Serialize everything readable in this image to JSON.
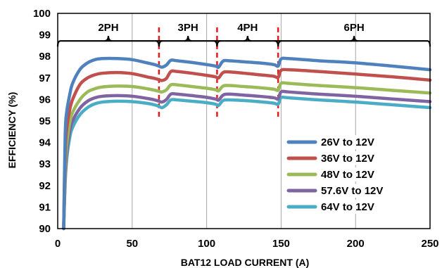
{
  "chart_data": {
    "type": "line",
    "xlabel": "BAT12 LOAD CURRENT (A)",
    "ylabel": "EFFICIENCY (%)",
    "xlim": [
      0,
      250
    ],
    "ylim": [
      90,
      100
    ],
    "x_ticks": [
      0,
      50,
      100,
      150,
      200,
      250
    ],
    "y_ticks": [
      90,
      91,
      92,
      93,
      94,
      95,
      96,
      97,
      98,
      99,
      100
    ],
    "grid": "vertical",
    "legend": "bottom-right",
    "phase_boundaries": [
      68,
      107,
      148
    ],
    "phase_labels": [
      {
        "label": "2PH",
        "x": 34
      },
      {
        "label": "3PH",
        "x": 87.5
      },
      {
        "label": "4PH",
        "x": 127.5
      },
      {
        "label": "6PH",
        "x": 199
      }
    ],
    "phase_bracket_level": 98.72,
    "series": [
      {
        "name": "26V to 12V",
        "color": "#4F81BD",
        "points": [
          [
            4,
            90.0
          ],
          [
            5,
            94.3
          ],
          [
            6,
            95.4
          ],
          [
            8,
            96.2
          ],
          [
            10,
            96.75
          ],
          [
            15,
            97.4
          ],
          [
            20,
            97.7
          ],
          [
            25,
            97.85
          ],
          [
            30,
            97.9
          ],
          [
            40,
            97.9
          ],
          [
            50,
            97.85
          ],
          [
            60,
            97.7
          ],
          [
            65,
            97.62
          ],
          [
            68,
            97.55
          ],
          [
            70,
            97.5
          ],
          [
            73,
            97.6
          ],
          [
            76,
            97.82
          ],
          [
            80,
            97.8
          ],
          [
            90,
            97.72
          ],
          [
            100,
            97.62
          ],
          [
            106,
            97.55
          ],
          [
            108,
            97.5
          ],
          [
            111,
            97.78
          ],
          [
            115,
            97.8
          ],
          [
            125,
            97.75
          ],
          [
            135,
            97.7
          ],
          [
            145,
            97.62
          ],
          [
            148,
            97.55
          ],
          [
            150,
            97.88
          ],
          [
            155,
            97.9
          ],
          [
            175,
            97.8
          ],
          [
            200,
            97.7
          ],
          [
            225,
            97.55
          ],
          [
            250,
            97.38
          ]
        ]
      },
      {
        "name": "36V to 12V",
        "color": "#C0504D",
        "points": [
          [
            4,
            90.0
          ],
          [
            5,
            93.5
          ],
          [
            6,
            94.6
          ],
          [
            8,
            95.5
          ],
          [
            10,
            96.0
          ],
          [
            15,
            96.7
          ],
          [
            20,
            97.0
          ],
          [
            25,
            97.15
          ],
          [
            30,
            97.22
          ],
          [
            40,
            97.25
          ],
          [
            50,
            97.2
          ],
          [
            60,
            97.05
          ],
          [
            65,
            96.98
          ],
          [
            68,
            96.92
          ],
          [
            70,
            96.88
          ],
          [
            73,
            96.98
          ],
          [
            76,
            97.3
          ],
          [
            80,
            97.3
          ],
          [
            90,
            97.22
          ],
          [
            100,
            97.12
          ],
          [
            106,
            97.05
          ],
          [
            108,
            97.0
          ],
          [
            111,
            97.25
          ],
          [
            115,
            97.28
          ],
          [
            125,
            97.22
          ],
          [
            135,
            97.15
          ],
          [
            145,
            97.08
          ],
          [
            148,
            97.02
          ],
          [
            150,
            97.35
          ],
          [
            155,
            97.38
          ],
          [
            175,
            97.3
          ],
          [
            200,
            97.18
          ],
          [
            225,
            97.05
          ],
          [
            250,
            96.9
          ]
        ]
      },
      {
        "name": "48V to 12V",
        "color": "#9BBB59",
        "points": [
          [
            4,
            90.0
          ],
          [
            5,
            92.8
          ],
          [
            6,
            93.9
          ],
          [
            8,
            94.9
          ],
          [
            10,
            95.4
          ],
          [
            15,
            96.0
          ],
          [
            20,
            96.35
          ],
          [
            25,
            96.5
          ],
          [
            30,
            96.58
          ],
          [
            40,
            96.62
          ],
          [
            50,
            96.6
          ],
          [
            60,
            96.5
          ],
          [
            65,
            96.43
          ],
          [
            68,
            96.38
          ],
          [
            70,
            96.35
          ],
          [
            73,
            96.45
          ],
          [
            76,
            96.68
          ],
          [
            80,
            96.68
          ],
          [
            90,
            96.6
          ],
          [
            100,
            96.52
          ],
          [
            106,
            96.45
          ],
          [
            108,
            96.4
          ],
          [
            111,
            96.62
          ],
          [
            115,
            96.65
          ],
          [
            125,
            96.6
          ],
          [
            135,
            96.55
          ],
          [
            145,
            96.48
          ],
          [
            148,
            96.43
          ],
          [
            150,
            96.75
          ],
          [
            155,
            96.75
          ],
          [
            175,
            96.65
          ],
          [
            200,
            96.55
          ],
          [
            225,
            96.42
          ],
          [
            250,
            96.3
          ]
        ]
      },
      {
        "name": "57.6V to 12V",
        "color": "#8064A2",
        "points": [
          [
            4,
            90.0
          ],
          [
            5,
            92.4
          ],
          [
            6,
            93.5
          ],
          [
            8,
            94.5
          ],
          [
            10,
            95.0
          ],
          [
            15,
            95.6
          ],
          [
            20,
            95.92
          ],
          [
            25,
            96.08
          ],
          [
            30,
            96.15
          ],
          [
            40,
            96.18
          ],
          [
            50,
            96.15
          ],
          [
            60,
            96.05
          ],
          [
            65,
            95.98
          ],
          [
            68,
            95.92
          ],
          [
            70,
            95.88
          ],
          [
            73,
            96.0
          ],
          [
            76,
            96.25
          ],
          [
            80,
            96.25
          ],
          [
            90,
            96.18
          ],
          [
            100,
            96.1
          ],
          [
            106,
            96.02
          ],
          [
            108,
            95.97
          ],
          [
            111,
            96.2
          ],
          [
            115,
            96.25
          ],
          [
            125,
            96.2
          ],
          [
            135,
            96.15
          ],
          [
            145,
            96.08
          ],
          [
            148,
            96.03
          ],
          [
            150,
            96.35
          ],
          [
            155,
            96.35
          ],
          [
            175,
            96.25
          ],
          [
            200,
            96.15
          ],
          [
            225,
            96.02
          ],
          [
            250,
            95.9
          ]
        ]
      },
      {
        "name": "64V to 12V",
        "color": "#4BACC6",
        "points": [
          [
            4,
            90.0
          ],
          [
            5,
            92.1
          ],
          [
            6,
            93.2
          ],
          [
            8,
            94.2
          ],
          [
            10,
            94.7
          ],
          [
            15,
            95.3
          ],
          [
            20,
            95.62
          ],
          [
            25,
            95.8
          ],
          [
            30,
            95.88
          ],
          [
            40,
            95.92
          ],
          [
            50,
            95.9
          ],
          [
            60,
            95.82
          ],
          [
            65,
            95.75
          ],
          [
            68,
            95.68
          ],
          [
            70,
            95.62
          ],
          [
            73,
            95.75
          ],
          [
            76,
            95.98
          ],
          [
            80,
            95.98
          ],
          [
            90,
            95.92
          ],
          [
            100,
            95.85
          ],
          [
            106,
            95.78
          ],
          [
            108,
            95.72
          ],
          [
            111,
            95.95
          ],
          [
            115,
            95.98
          ],
          [
            125,
            95.95
          ],
          [
            135,
            95.9
          ],
          [
            145,
            95.83
          ],
          [
            148,
            95.78
          ],
          [
            150,
            96.08
          ],
          [
            155,
            96.08
          ],
          [
            175,
            95.98
          ],
          [
            200,
            95.88
          ],
          [
            225,
            95.75
          ],
          [
            250,
            95.62
          ]
        ]
      }
    ]
  }
}
